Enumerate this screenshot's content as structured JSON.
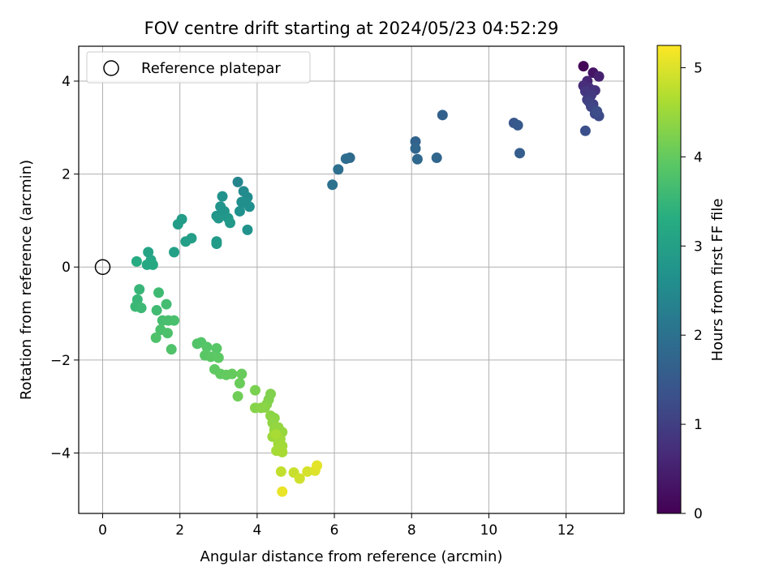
{
  "chart_data": {
    "type": "scatter",
    "title": "FOV centre drift starting at 2024/05/23 04:52:29",
    "xlabel": "Angular distance from reference (arcmin)",
    "ylabel": "Rotation from reference (arcmin)",
    "xlim": [
      -0.62,
      13.5
    ],
    "ylim": [
      -5.3,
      4.75
    ],
    "xticks": [
      0,
      2,
      4,
      6,
      8,
      10,
      12
    ],
    "yticks": [
      -4,
      -2,
      0,
      2,
      4
    ],
    "grid": true,
    "legend": {
      "position": "top-left",
      "entries": [
        "Reference platepar"
      ]
    },
    "reference_point": {
      "x": 0,
      "y": 0
    },
    "colorbar": {
      "label": "Hours from first FF file",
      "range": [
        0,
        5.25
      ],
      "ticks": [
        0,
        1,
        2,
        3,
        4,
        5
      ],
      "colormap": "viridis"
    },
    "series": [
      {
        "points": [
          [
            12.45,
            4.32,
            0.05
          ],
          [
            12.7,
            4.18,
            0.3
          ],
          [
            12.85,
            4.1,
            0.5
          ],
          [
            12.55,
            4.0,
            0.6
          ],
          [
            12.45,
            3.9,
            0.7
          ],
          [
            12.6,
            3.85,
            0.75
          ],
          [
            12.75,
            3.8,
            0.8
          ],
          [
            12.5,
            3.78,
            0.85
          ],
          [
            12.65,
            3.7,
            0.9
          ],
          [
            12.55,
            3.6,
            0.95
          ],
          [
            12.7,
            3.5,
            1.0
          ],
          [
            12.6,
            3.55,
            1.05
          ],
          [
            12.65,
            3.45,
            1.1
          ],
          [
            12.75,
            3.3,
            1.15
          ],
          [
            12.85,
            3.25,
            1.2
          ],
          [
            12.8,
            3.35,
            1.25
          ],
          [
            12.5,
            2.93,
            1.3
          ],
          [
            10.65,
            3.1,
            1.45
          ],
          [
            10.75,
            3.05,
            1.5
          ],
          [
            10.8,
            2.45,
            1.6
          ],
          [
            8.8,
            3.27,
            1.65
          ],
          [
            8.1,
            2.7,
            1.7
          ],
          [
            8.1,
            2.55,
            1.75
          ],
          [
            8.15,
            2.32,
            1.8
          ],
          [
            8.65,
            2.35,
            1.75
          ],
          [
            6.4,
            2.35,
            1.85
          ],
          [
            6.3,
            2.33,
            1.9
          ],
          [
            6.1,
            2.1,
            1.95
          ],
          [
            5.95,
            1.77,
            2.0
          ],
          [
            3.5,
            1.83,
            2.4
          ],
          [
            3.65,
            1.63,
            2.5
          ],
          [
            3.75,
            1.5,
            2.55
          ],
          [
            3.6,
            1.4,
            2.6
          ],
          [
            3.8,
            1.3,
            2.6
          ],
          [
            3.7,
            1.38,
            2.62
          ],
          [
            3.55,
            1.2,
            2.65
          ],
          [
            3.75,
            0.8,
            2.7
          ],
          [
            3.1,
            1.52,
            2.7
          ],
          [
            3.05,
            1.3,
            2.72
          ],
          [
            3.15,
            1.2,
            2.75
          ],
          [
            2.95,
            1.1,
            2.75
          ],
          [
            3.0,
            1.05,
            2.8
          ],
          [
            3.25,
            1.05,
            2.82
          ],
          [
            3.3,
            0.95,
            2.85
          ],
          [
            2.95,
            0.55,
            2.85
          ],
          [
            2.95,
            0.5,
            2.88
          ],
          [
            2.05,
            1.03,
            2.9
          ],
          [
            1.95,
            0.92,
            2.92
          ],
          [
            2.3,
            0.62,
            2.95
          ],
          [
            2.15,
            0.55,
            2.97
          ],
          [
            1.85,
            0.32,
            3.0
          ],
          [
            1.18,
            0.32,
            3.1
          ],
          [
            1.25,
            0.15,
            3.15
          ],
          [
            1.15,
            0.05,
            3.2
          ],
          [
            1.3,
            0.05,
            3.22
          ],
          [
            0.88,
            0.12,
            3.25
          ],
          [
            0.95,
            -0.48,
            3.5
          ],
          [
            0.9,
            -0.7,
            3.52
          ],
          [
            0.85,
            -0.85,
            3.55
          ],
          [
            1.0,
            -0.88,
            3.57
          ],
          [
            1.45,
            -0.55,
            3.6
          ],
          [
            1.4,
            -0.93,
            3.62
          ],
          [
            1.65,
            -0.8,
            3.65
          ],
          [
            1.55,
            -1.15,
            3.68
          ],
          [
            1.7,
            -1.15,
            3.7
          ],
          [
            1.85,
            -1.15,
            3.72
          ],
          [
            1.5,
            -1.35,
            3.74
          ],
          [
            1.68,
            -1.42,
            3.76
          ],
          [
            1.38,
            -1.52,
            3.78
          ],
          [
            1.78,
            -1.77,
            3.8
          ],
          [
            2.45,
            -1.65,
            3.82
          ],
          [
            2.55,
            -1.62,
            3.84
          ],
          [
            2.7,
            -1.72,
            3.86
          ],
          [
            2.95,
            -1.75,
            3.88
          ],
          [
            2.65,
            -1.9,
            3.9
          ],
          [
            2.8,
            -1.93,
            3.92
          ],
          [
            3.0,
            -1.95,
            3.94
          ],
          [
            2.9,
            -2.2,
            3.96
          ],
          [
            3.05,
            -2.3,
            3.98
          ],
          [
            3.2,
            -2.32,
            4.0
          ],
          [
            3.35,
            -2.3,
            4.02
          ],
          [
            3.6,
            -2.3,
            4.04
          ],
          [
            3.55,
            -2.5,
            4.06
          ],
          [
            3.5,
            -2.78,
            4.1
          ],
          [
            3.95,
            -2.65,
            4.2
          ],
          [
            4.3,
            -2.85,
            4.25
          ],
          [
            4.35,
            -2.73,
            4.25
          ],
          [
            4.25,
            -2.95,
            4.28
          ],
          [
            3.95,
            -3.03,
            4.3
          ],
          [
            4.1,
            -3.03,
            4.32
          ],
          [
            4.2,
            -3.02,
            4.33
          ],
          [
            4.35,
            -3.2,
            4.35
          ],
          [
            4.45,
            -3.25,
            4.37
          ],
          [
            4.4,
            -3.35,
            4.39
          ],
          [
            4.45,
            -3.5,
            4.41
          ],
          [
            4.55,
            -3.45,
            4.43
          ],
          [
            4.65,
            -3.55,
            4.45
          ],
          [
            4.5,
            -3.65,
            4.47
          ],
          [
            4.4,
            -3.65,
            4.49
          ],
          [
            4.6,
            -3.7,
            4.51
          ],
          [
            4.55,
            -3.8,
            4.53
          ],
          [
            4.65,
            -3.85,
            4.55
          ],
          [
            4.5,
            -3.95,
            4.57
          ],
          [
            4.65,
            -3.98,
            4.59
          ],
          [
            4.48,
            -3.6,
            4.6
          ],
          [
            4.62,
            -4.4,
            4.8
          ],
          [
            4.95,
            -4.42,
            4.85
          ],
          [
            5.1,
            -4.55,
            4.9
          ],
          [
            5.3,
            -4.4,
            4.95
          ],
          [
            5.5,
            -4.38,
            5.0
          ],
          [
            5.55,
            -4.27,
            5.05
          ],
          [
            4.65,
            -4.83,
            5.1
          ]
        ]
      }
    ]
  }
}
